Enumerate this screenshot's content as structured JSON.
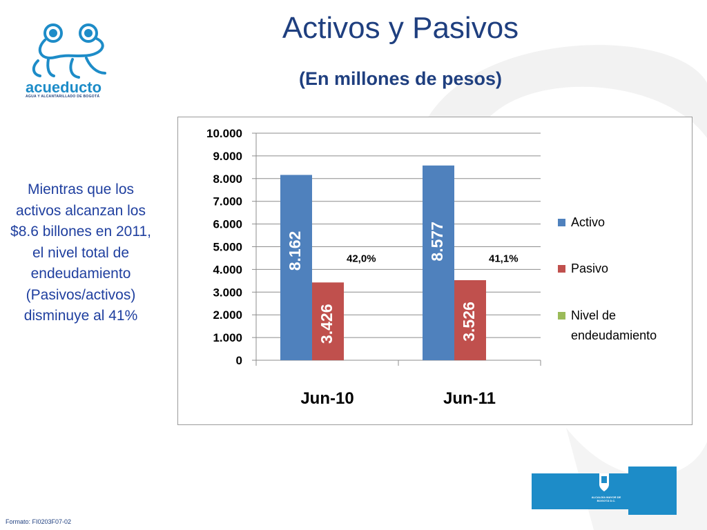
{
  "slide": {
    "title": "Activos y Pasivos",
    "subtitle": "(En millones de pesos)",
    "side_text": "Mientras que los activos alcanzan los $8.6 billones en 2011, el nivel total  de endeudamiento (Pasivos/activos) disminuye al 41%",
    "footer": "Formato: FI0203F07-02"
  },
  "logo": {
    "name": "acueducto",
    "tagline": "AGUA Y ALCANTARILLADO DE BOGOTÁ",
    "icon": "frog-logo-icon"
  },
  "corner_logo": {
    "text": "ALCALDÍA MAYOR DE BOGOTÁ D.C.",
    "icon": "bogota-shield-icon"
  },
  "chart_data": {
    "type": "bar",
    "categories": [
      "Jun-10",
      "Jun-11"
    ],
    "series": [
      {
        "name": "Activo",
        "values": [
          8162,
          8577
        ],
        "labels": [
          "8.162",
          "8.577"
        ],
        "color": "#4f81bd"
      },
      {
        "name": "Pasivo",
        "values": [
          3426,
          3526
        ],
        "labels": [
          "3.426",
          "3.526"
        ],
        "color": "#c0504d"
      },
      {
        "name": "Nivel de endeudamiento",
        "values": [
          42.0,
          41.1
        ],
        "labels": [
          "42,0%",
          "41,1%"
        ],
        "color": "#9bbb59"
      }
    ],
    "ylim": [
      0,
      10000
    ],
    "yticks": [
      0,
      1000,
      2000,
      3000,
      4000,
      5000,
      6000,
      7000,
      8000,
      9000,
      10000
    ],
    "ytick_labels": [
      "0",
      "1.000",
      "2.000",
      "3.000",
      "4.000",
      "5.000",
      "6.000",
      "7.000",
      "8.000",
      "9.000",
      "10.000"
    ],
    "grid": true,
    "legend_position": "right",
    "legend_labels": [
      "Activo",
      "Pasivo",
      "Nivel de endeudamiento"
    ]
  }
}
